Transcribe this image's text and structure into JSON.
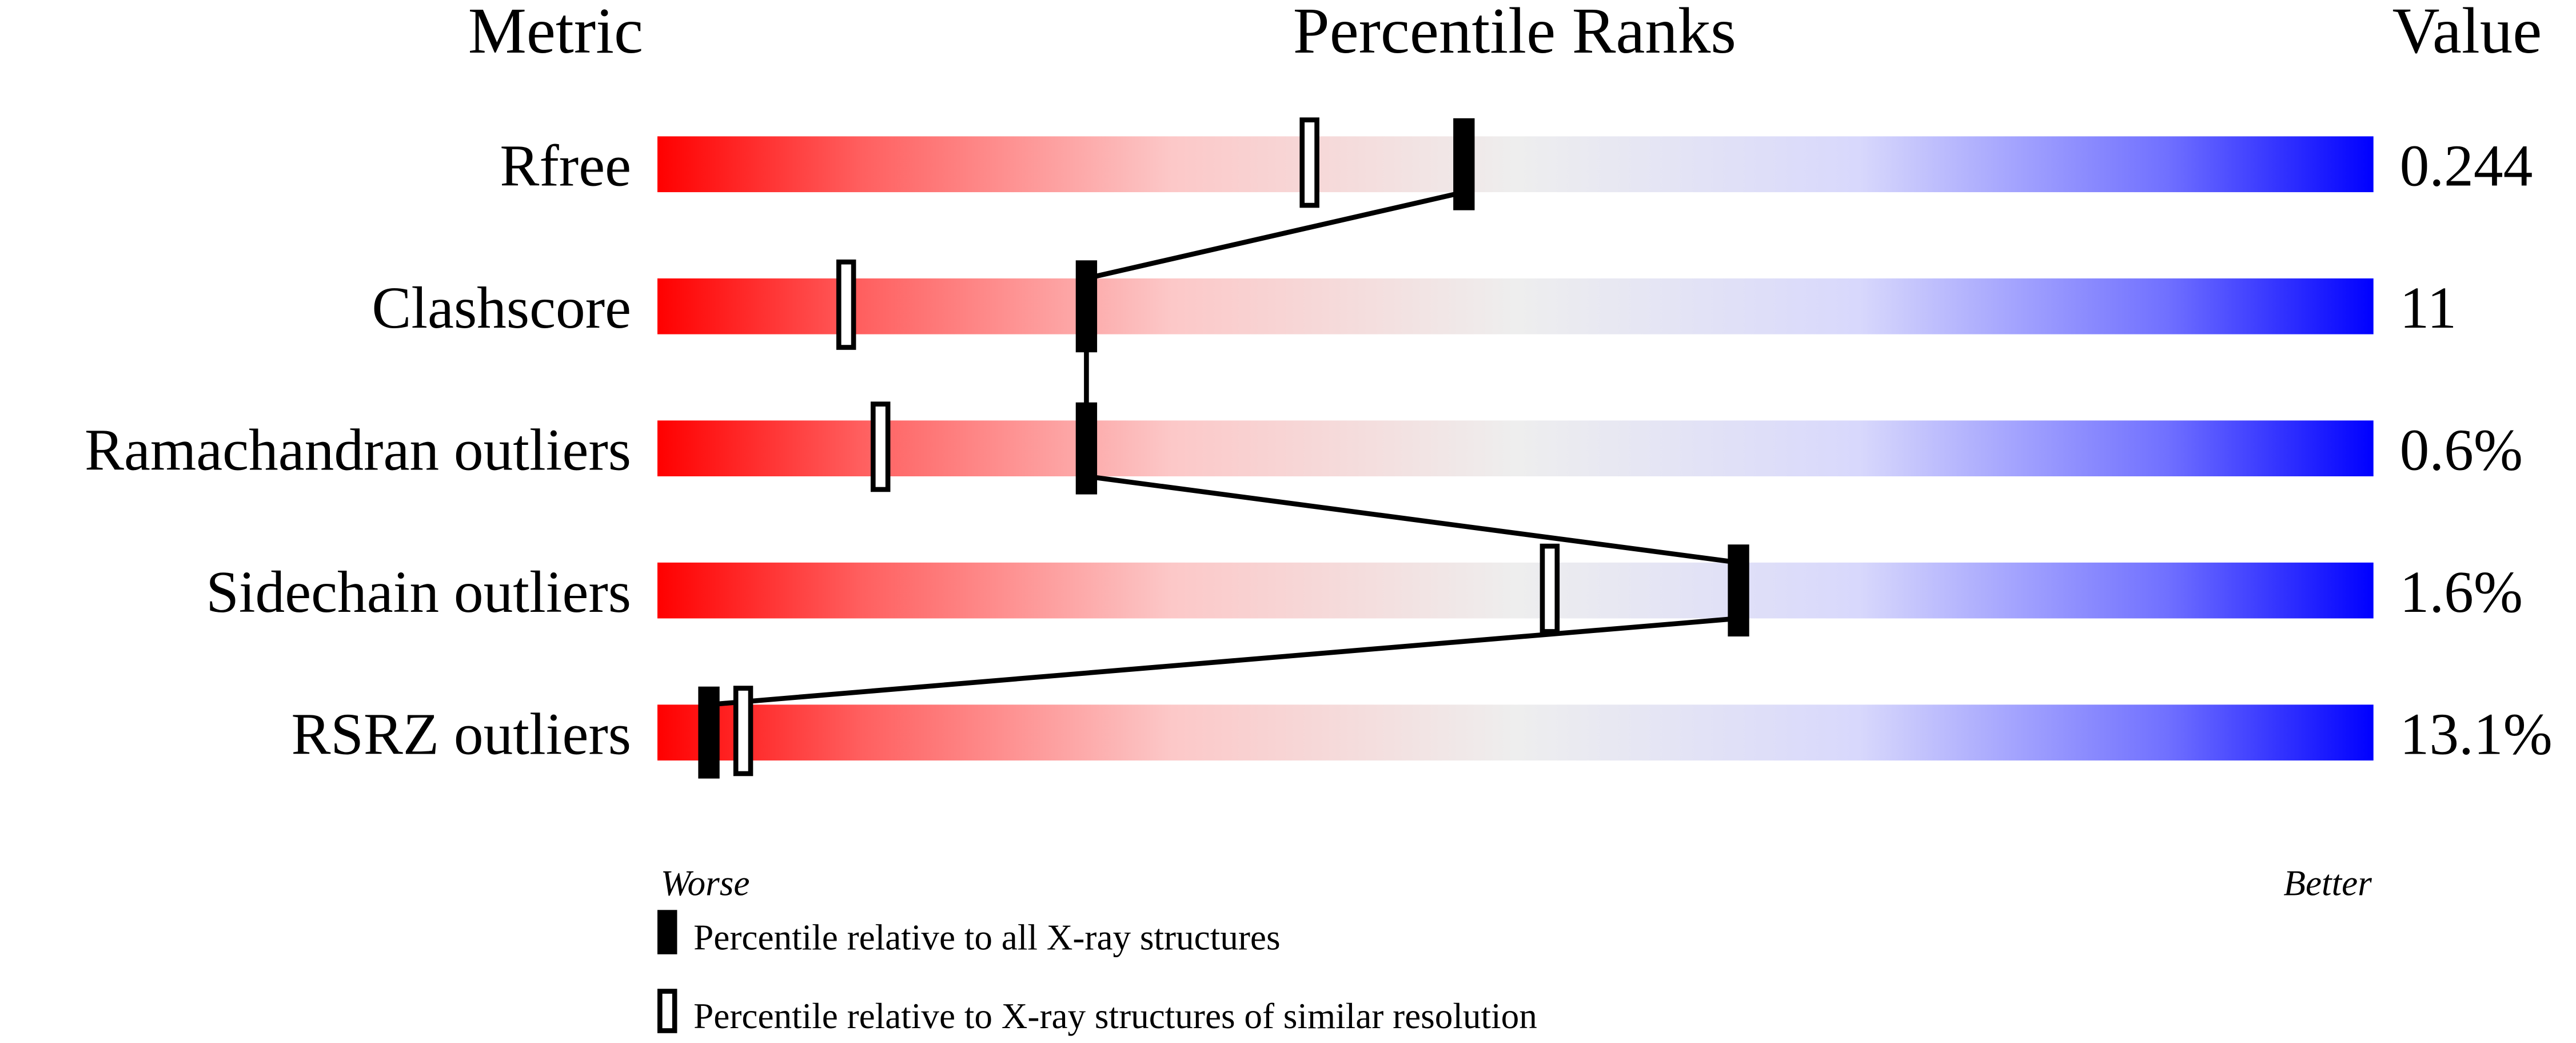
{
  "chart_data": {
    "type": "percentile-slider",
    "headers": {
      "metric": "Metric",
      "ranks": "Percentile Ranks",
      "value": "Value"
    },
    "xlim": [
      0,
      100
    ],
    "metrics": [
      {
        "name": "Rfree",
        "value": "0.244",
        "percentile_all": 47,
        "percentile_similar": 38
      },
      {
        "name": "Clashscore",
        "value": "11",
        "percentile_all": 25,
        "percentile_similar": 11
      },
      {
        "name": "Ramachandran outliers",
        "value": "0.6%",
        "percentile_all": 25,
        "percentile_similar": 13
      },
      {
        "name": "Sidechain outliers",
        "value": "1.6%",
        "percentile_all": 63,
        "percentile_similar": 52
      },
      {
        "name": "RSRZ outliers",
        "value": "13.1%",
        "percentile_all": 3,
        "percentile_similar": 5
      }
    ],
    "axis_labels": {
      "left": "Worse",
      "right": "Better"
    },
    "legend": {
      "all": "Percentile relative to all X-ray structures",
      "similar": "Percentile relative to X-ray structures of similar resolution"
    },
    "colors": {
      "worse": "#ff0000",
      "middle": "#eeeeee",
      "better": "#0000ff",
      "marker": "#000000"
    }
  }
}
